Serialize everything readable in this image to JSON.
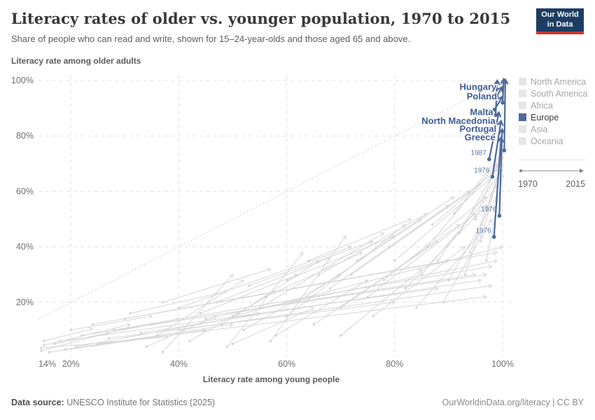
{
  "header": {
    "title": "Literacy rates of older vs. younger population, 1970 to 2015",
    "subtitle": "Share of people who can read and write, shown for 15–24-year-olds and those aged 65 and above.",
    "logo_line1": "Our World",
    "logo_line2": "in Data"
  },
  "legend": {
    "items": [
      {
        "label": "North America",
        "active": false
      },
      {
        "label": "South America",
        "active": false
      },
      {
        "label": "Africa",
        "active": false
      },
      {
        "label": "Europe",
        "active": true
      },
      {
        "label": "Asia",
        "active": false
      },
      {
        "label": "Oceania",
        "active": false
      }
    ],
    "active_color": "#4c6a9c",
    "inactive_color": "#e6e6e6",
    "timeline_start": "1970",
    "timeline_end": "2015"
  },
  "footer": {
    "datasource_label": "Data source:",
    "datasource_value": " UNESCO Institute for Statistics (2025)",
    "right_text": "OurWorldinData.org/literacy | CC BY"
  },
  "chart_data": {
    "type": "scatter",
    "subtype": "connected-arrow-scatter",
    "title": "Literacy rates of older vs. younger population, 1970 to 2015",
    "xlabel": "Literacy rate among young people",
    "ylabel": "Literacy rate among older adults",
    "xlim": [
      14,
      101
    ],
    "ylim": [
      0,
      101
    ],
    "grid": true,
    "parity_line": true,
    "x_ticks": [
      {
        "value": 14,
        "label": "14%"
      },
      {
        "value": 20,
        "label": "20%"
      },
      {
        "value": 40,
        "label": "40%"
      },
      {
        "value": 60,
        "label": "60%"
      },
      {
        "value": 80,
        "label": "80%"
      },
      {
        "value": 100,
        "label": "100%"
      }
    ],
    "y_ticks": [
      {
        "value": 20,
        "label": "20%"
      },
      {
        "value": 40,
        "label": "40%"
      },
      {
        "value": 60,
        "label": "60%"
      },
      {
        "value": 80,
        "label": "80%"
      },
      {
        "value": 100,
        "label": "100%"
      }
    ],
    "colors": {
      "europe": "#4c6a9c",
      "europe_label": "#3d5c94",
      "year_label": "#5a76a5",
      "gray_line": "#d5d5d5",
      "grid": "#e2e2e2",
      "parity": "#c9c9c9"
    },
    "europe_series": [
      {
        "name": "Hungary",
        "start": {
          "x": 98.9,
          "y": 94.3
        },
        "end": {
          "x": 99.9,
          "y": 97.6
        }
      },
      {
        "name": "Poland",
        "start": {
          "x": 98.5,
          "y": 89.5
        },
        "end": {
          "x": 100.0,
          "y": 94.2
        }
      },
      {
        "name": "Malta",
        "start": {
          "x": 97.5,
          "y": 71.6,
          "year": "1987"
        },
        "end": {
          "x": 99.3,
          "y": 88.5
        }
      },
      {
        "name": "North Macedonia",
        "start": {
          "x": 98.1,
          "y": 65.3,
          "year": "1976"
        },
        "end": {
          "x": 99.7,
          "y": 85.4
        }
      },
      {
        "name": "Portugal",
        "start": {
          "x": 99.4,
          "y": 51.2,
          "year": "1976"
        },
        "end": {
          "x": 99.9,
          "y": 82.4
        }
      },
      {
        "name": "Greece",
        "start": {
          "x": 98.4,
          "y": 43.6,
          "year": "1976"
        },
        "end": {
          "x": 99.7,
          "y": 79.4
        }
      }
    ],
    "europe_extra_strands": [
      {
        "start": {
          "x": 100.3,
          "y": 74.8
        },
        "end": {
          "x": 100.5,
          "y": 100.3
        }
      },
      {
        "start": {
          "x": 98.7,
          "y": 87.5
        },
        "end": {
          "x": 99.0,
          "y": 100.0
        }
      },
      {
        "start": {
          "x": 100.0,
          "y": 92.0
        },
        "end": {
          "x": 100.2,
          "y": 100.5
        }
      }
    ],
    "other_trajectories": [
      [
        14.5,
        2.5,
        27,
        9
      ],
      [
        14.5,
        3.5,
        38,
        7.5
      ],
      [
        15,
        4.5,
        31,
        12
      ],
      [
        16,
        2,
        45,
        10
      ],
      [
        17,
        5,
        40,
        14
      ],
      [
        15,
        6,
        24,
        10.5
      ],
      [
        19,
        3,
        50,
        12
      ],
      [
        21,
        4,
        55,
        16
      ],
      [
        18,
        6,
        88,
        25
      ],
      [
        22,
        8,
        95,
        30
      ],
      [
        25,
        5,
        97,
        22
      ],
      [
        28,
        10,
        98,
        33
      ],
      [
        33,
        9,
        96,
        28
      ],
      [
        24,
        12,
        90,
        35
      ],
      [
        30,
        14,
        99,
        38
      ],
      [
        35,
        12,
        97,
        30
      ],
      [
        40,
        10,
        98,
        26
      ],
      [
        27,
        7,
        80,
        20
      ],
      [
        45,
        14,
        99,
        35
      ],
      [
        50,
        15,
        100,
        40
      ],
      [
        36,
        8,
        52,
        28
      ],
      [
        42,
        6,
        58,
        24
      ],
      [
        48,
        12,
        66,
        35
      ],
      [
        40,
        18,
        72,
        40
      ],
      [
        52,
        10,
        70,
        30
      ],
      [
        55,
        18,
        78,
        45
      ],
      [
        60,
        15,
        82,
        48
      ],
      [
        58,
        8,
        75,
        28
      ],
      [
        62,
        20,
        85,
        50
      ],
      [
        65,
        12,
        88,
        42
      ],
      [
        68,
        25,
        90,
        55
      ],
      [
        70,
        18,
        92,
        48
      ],
      [
        72,
        30,
        94,
        60
      ],
      [
        75,
        22,
        95,
        52
      ],
      [
        78,
        28,
        97,
        58
      ],
      [
        80,
        35,
        98,
        65
      ],
      [
        82,
        25,
        97,
        55
      ],
      [
        85,
        30,
        99,
        62
      ],
      [
        86,
        40,
        99,
        70
      ],
      [
        88,
        35,
        100,
        68
      ],
      [
        90,
        28,
        99,
        58
      ],
      [
        92,
        45,
        100,
        72
      ],
      [
        94,
        38,
        100,
        70
      ],
      [
        95,
        50,
        100,
        75
      ],
      [
        96,
        42,
        100,
        73
      ],
      [
        50,
        5,
        65,
        18
      ],
      [
        44,
        16,
        62,
        30
      ],
      [
        56,
        22,
        74,
        38
      ],
      [
        76,
        15,
        93,
        40
      ],
      [
        84,
        18,
        96,
        45
      ],
      [
        66,
        30,
        86,
        52
      ],
      [
        73,
        35,
        91,
        58
      ],
      [
        79,
        40,
        96,
        63
      ],
      [
        87,
        48,
        99,
        68
      ],
      [
        91,
        52,
        100,
        74
      ],
      [
        60,
        28,
        80,
        44
      ],
      [
        64,
        35,
        83,
        50
      ],
      [
        47,
        20,
        68,
        36
      ],
      [
        53,
        26,
        76,
        42
      ],
      [
        89,
        20,
        98,
        50
      ],
      [
        93,
        30,
        99,
        64
      ],
      [
        97,
        35,
        100,
        66
      ],
      [
        31,
        16,
        49,
        24
      ],
      [
        37,
        20,
        57,
        32
      ],
      [
        20,
        10,
        35,
        15
      ],
      [
        37,
        2,
        50,
        30
      ],
      [
        49,
        4,
        63,
        38
      ],
      [
        57,
        6,
        71,
        44
      ],
      [
        34,
        4,
        47,
        15
      ],
      [
        70,
        8,
        85,
        32
      ]
    ]
  }
}
